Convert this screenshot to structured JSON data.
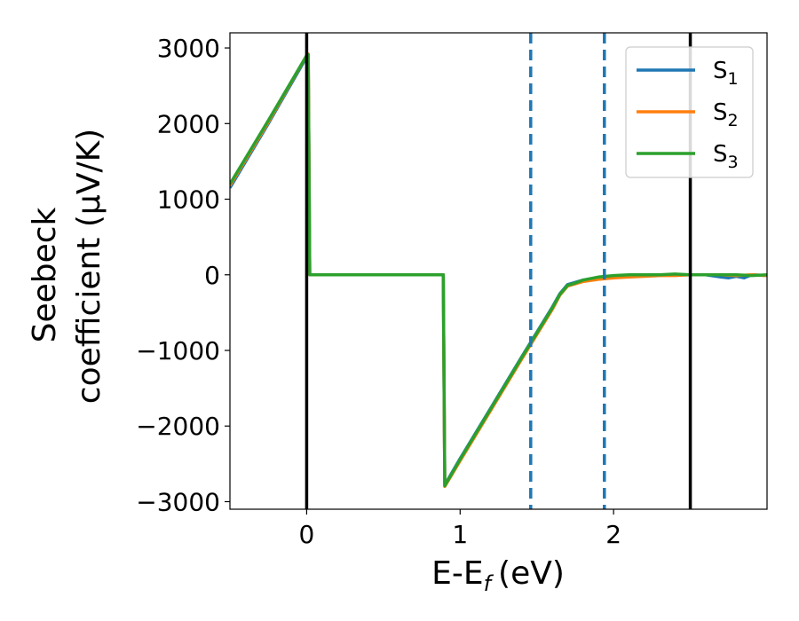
{
  "chart_data": {
    "type": "line",
    "xlabel": "E-E",
    "xlabel_sub": "f",
    "xlabel_unit": "(eV)",
    "ylabel_line1": "Seebeck",
    "ylabel_line2": "coefficient  (μV/K)",
    "xlim": [
      -0.5,
      3.0
    ],
    "ylim": [
      -3100,
      3200
    ],
    "xticks": [
      0,
      1,
      2
    ],
    "yticks": [
      -3000,
      -2000,
      -1000,
      0,
      1000,
      2000,
      3000
    ],
    "xtick_labels": [
      "0",
      "1",
      "2"
    ],
    "ytick_labels": [
      "−3000",
      "−2000",
      "−1000",
      "0",
      "1000",
      "2000",
      "3000"
    ],
    "grid": false,
    "legend_position": "top-right",
    "colors": {
      "S1": "#1f77b4",
      "S2": "#ff7f0e",
      "S3": "#2ca02c",
      "vline_solid": "#000000",
      "vline_dashed": "#1f77b4"
    },
    "vlines_solid": [
      0.0,
      2.5
    ],
    "vlines_dashed": [
      1.46,
      1.94
    ],
    "series": [
      {
        "name": "S",
        "sub": "1",
        "color": "#1f77b4",
        "x": [
          -0.5,
          -0.25,
          0.0,
          0.01,
          0.02,
          0.2,
          0.5,
          0.89,
          0.9,
          1.0,
          1.2,
          1.4,
          1.5,
          1.6,
          1.65,
          1.7,
          1.75,
          1.8,
          1.9,
          2.0,
          2.1,
          2.2,
          2.3,
          2.4,
          2.5,
          2.6,
          2.7,
          2.75,
          2.8,
          2.85,
          2.9,
          3.0
        ],
        "y": [
          1150,
          2000,
          2880,
          2900,
          0,
          0,
          0,
          0,
          -2780,
          -2430,
          -1760,
          -1090,
          -760,
          -430,
          -250,
          -130,
          -100,
          -70,
          -40,
          -20,
          -10,
          -10,
          0,
          0,
          0,
          0,
          -30,
          -40,
          -20,
          -40,
          0,
          -10
        ]
      },
      {
        "name": "S",
        "sub": "2",
        "color": "#ff7f0e",
        "x": [
          -0.5,
          -0.25,
          0.0,
          0.01,
          0.02,
          0.2,
          0.5,
          0.89,
          0.9,
          1.0,
          1.2,
          1.4,
          1.5,
          1.6,
          1.65,
          1.7,
          1.75,
          1.8,
          1.9,
          2.0,
          2.1,
          2.2,
          2.3,
          2.4,
          2.5,
          2.6,
          2.7,
          2.8,
          2.9,
          3.0
        ],
        "y": [
          1180,
          2020,
          2900,
          2920,
          0,
          0,
          0,
          0,
          -2800,
          -2460,
          -1790,
          -1120,
          -790,
          -460,
          -270,
          -150,
          -120,
          -90,
          -60,
          -40,
          -30,
          -20,
          -10,
          -10,
          0,
          0,
          0,
          -10,
          0,
          -10
        ]
      },
      {
        "name": "S",
        "sub": "3",
        "color": "#2ca02c",
        "x": [
          -0.5,
          -0.25,
          0.0,
          0.01,
          0.02,
          0.2,
          0.5,
          0.89,
          0.9,
          1.0,
          1.2,
          1.4,
          1.5,
          1.6,
          1.65,
          1.7,
          1.75,
          1.8,
          1.9,
          2.0,
          2.1,
          2.2,
          2.3,
          2.4,
          2.5,
          2.6,
          2.7,
          2.8,
          2.9,
          3.0
        ],
        "y": [
          1200,
          2040,
          2900,
          2910,
          0,
          0,
          0,
          0,
          -2790,
          -2440,
          -1770,
          -1100,
          -770,
          -440,
          -260,
          -140,
          -110,
          -70,
          -30,
          -10,
          0,
          0,
          0,
          10,
          0,
          0,
          0,
          0,
          -10,
          0
        ]
      }
    ]
  }
}
